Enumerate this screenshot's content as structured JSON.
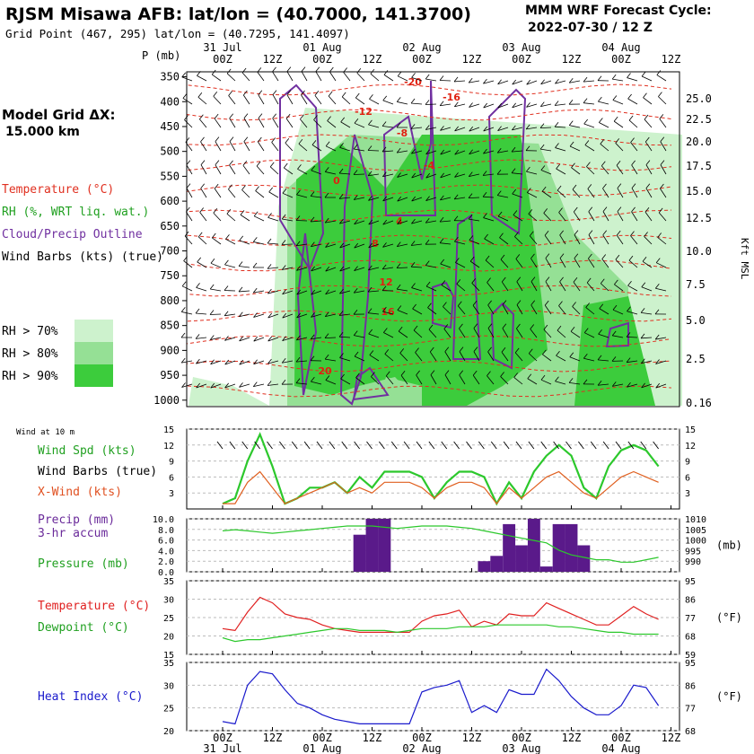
{
  "header": {
    "title": "RJSM Misawa AFB:  lat/lon = (40.7000, 141.3700)",
    "subtitle": "Grid Point (467, 295) lat/lon = (40.7295, 141.4097)",
    "cycle_label": "MMM WRF Forecast Cycle:",
    "cycle_value": "2022-07-30 / 12  Z"
  },
  "time_axis": {
    "day_labels": [
      "31 Jul",
      "01 Aug",
      "02 Aug",
      "03 Aug",
      "04 Aug"
    ],
    "hour_labels": [
      "00Z",
      "12Z",
      "00Z",
      "12Z",
      "00Z",
      "12Z",
      "00Z",
      "12Z",
      "00Z",
      "12Z"
    ]
  },
  "left_panel": {
    "model_grid_label": "Model Grid ΔX:",
    "model_grid_value": "15.000 km",
    "legend": [
      {
        "text": "Temperature (°C)",
        "color": "#e03020"
      },
      {
        "text": "RH (%, WRT liq. wat.)",
        "color": "#20a020"
      },
      {
        "text": "Cloud/Precip Outline",
        "color": "#7030a0"
      },
      {
        "text": "Wind Barbs (kts) (true)",
        "color": "#000000"
      }
    ],
    "rh_scale": [
      {
        "text": "RH > 70%",
        "color": "#cdf2cd"
      },
      {
        "text": "RH > 80%",
        "color": "#95e095"
      },
      {
        "text": "RH > 90%",
        "color": "#3ccc3c"
      }
    ]
  },
  "chart_data": [
    {
      "type": "heatmap",
      "name": "cross-section",
      "y_axis_title": "P (mb)",
      "pressure_levels": [
        350,
        400,
        450,
        500,
        550,
        600,
        650,
        700,
        750,
        800,
        850,
        900,
        950,
        1000
      ],
      "right_axis_title": "Kft MSL",
      "height_labels": [
        "25.0",
        "22.5",
        "20.0",
        "17.5",
        "15.0",
        "12.5",
        "10.0",
        "7.5",
        "5.0",
        "2.5",
        "0.16"
      ],
      "temperature_contour_labels": [
        "-20",
        "-16",
        "-12",
        "-8",
        "-4",
        "0",
        "4",
        "8",
        "12",
        "16",
        "20"
      ]
    },
    {
      "type": "line",
      "name": "wind",
      "panel_label": "Wind at 10 m",
      "left_ticks": [
        "15",
        "12",
        "9",
        "6",
        "3"
      ],
      "right_ticks": [
        "15",
        "12",
        "9",
        "6",
        "3"
      ],
      "labels": [
        "Wind Spd (kts)",
        "Wind Barbs (true)",
        "X-Wind (kts)"
      ],
      "ylim": [
        0,
        15
      ],
      "x": [
        0,
        3,
        6,
        9,
        12,
        15,
        18,
        21,
        24,
        27,
        30,
        33,
        36,
        39,
        42,
        45,
        48,
        51,
        54,
        57,
        60,
        63,
        66,
        69,
        72,
        75,
        78,
        81,
        84,
        87,
        90,
        93,
        96,
        99,
        102,
        105
      ],
      "series": [
        {
          "name": "Wind Spd (kts)",
          "color": "#2cc82c",
          "values": [
            1,
            2,
            9,
            14,
            8,
            1,
            2,
            4,
            4,
            5,
            3,
            6,
            4,
            7,
            7,
            7,
            6,
            2,
            5,
            7,
            7,
            6,
            1,
            5,
            2,
            7,
            10,
            12,
            10,
            4,
            2,
            8,
            11,
            12,
            11,
            8
          ]
        },
        {
          "name": "X-Wind (kts)",
          "color": "#e06020",
          "values": [
            1,
            1,
            5,
            7,
            4,
            1,
            2,
            3,
            4,
            5,
            3,
            4,
            3,
            5,
            5,
            5,
            4,
            2,
            4,
            5,
            5,
            4,
            1,
            4,
            2,
            4,
            6,
            7,
            5,
            3,
            2,
            4,
            6,
            7,
            6,
            5
          ]
        }
      ]
    },
    {
      "type": "bar",
      "name": "precip",
      "labels": [
        "Precip (mm)",
        "3-hr accum",
        "Pressure (mb)"
      ],
      "left_ticks": [
        "10.0",
        "8.0",
        "6.0",
        "4.0",
        "2.0",
        "0.0"
      ],
      "right_ticks": [
        "1010",
        "1005",
        "1000",
        "995",
        "990"
      ],
      "right_unit": "(mb)",
      "ylim": [
        0,
        10
      ],
      "pressure_ylim": [
        990,
        1012
      ],
      "x": [
        0,
        3,
        6,
        9,
        12,
        15,
        18,
        21,
        24,
        27,
        30,
        33,
        36,
        39,
        42,
        45,
        48,
        51,
        54,
        57,
        60,
        63,
        66,
        69,
        72,
        75,
        78,
        81,
        84,
        87,
        90,
        93,
        96,
        99,
        102,
        105
      ],
      "series": [
        {
          "name": "Precip (mm)",
          "color": "#5a1a8a",
          "values": [
            0,
            0,
            0,
            0,
            0,
            0,
            0,
            0,
            0,
            0,
            0,
            7,
            10,
            10,
            0,
            0,
            0,
            0,
            0,
            0,
            0,
            2,
            3,
            9,
            5,
            10,
            1,
            9,
            9,
            5,
            0,
            0,
            0,
            0,
            0,
            0
          ]
        },
        {
          "name": "Pressure (mb)",
          "color": "#2cc82c",
          "values": [
            1007,
            1007.5,
            1007,
            1006.5,
            1006,
            1006.5,
            1007,
            1007.5,
            1008,
            1008.5,
            1009,
            1009,
            1009,
            1008.5,
            1008,
            1008.5,
            1009,
            1009,
            1009,
            1008.5,
            1008,
            1007,
            1006,
            1005,
            1004,
            1003,
            1002,
            999,
            997,
            996,
            995,
            995,
            994,
            994,
            995,
            996
          ]
        }
      ]
    },
    {
      "type": "line",
      "name": "temperature",
      "labels": [
        "Temperature (°C)",
        "Dewpoint (°C)"
      ],
      "left_ticks": [
        "35",
        "30",
        "25",
        "20",
        "15"
      ],
      "right_ticks": [
        "95",
        "86",
        "77",
        "68",
        "59"
      ],
      "right_unit": "(°F)",
      "ylim": [
        15,
        35
      ],
      "x": [
        0,
        3,
        6,
        9,
        12,
        15,
        18,
        21,
        24,
        27,
        30,
        33,
        36,
        39,
        42,
        45,
        48,
        51,
        54,
        57,
        60,
        63,
        66,
        69,
        72,
        75,
        78,
        81,
        84,
        87,
        90,
        93,
        96,
        99,
        102,
        105
      ],
      "series": [
        {
          "name": "Temperature (°C)",
          "color": "#e02020",
          "values": [
            22,
            21.5,
            26.5,
            30.5,
            29,
            26,
            25,
            24.5,
            23,
            22,
            21.5,
            21,
            21,
            21,
            21,
            21,
            24,
            25.5,
            26,
            27,
            22.5,
            24,
            23,
            26,
            25.5,
            25.5,
            29,
            27.5,
            26,
            24.5,
            23,
            23,
            25.5,
            28,
            26,
            24.5
          ]
        },
        {
          "name": "Dewpoint (°C)",
          "color": "#2cc82c",
          "values": [
            19.5,
            18.5,
            19,
            19,
            19.5,
            20,
            20.5,
            21,
            21.5,
            22,
            22,
            21.5,
            21.5,
            21.5,
            21,
            21.5,
            22,
            22,
            22,
            22.5,
            22.5,
            22.5,
            23,
            23,
            23,
            23,
            23,
            22.5,
            22.5,
            22,
            21.5,
            21,
            21,
            20.5,
            20.5,
            20.5
          ]
        }
      ]
    },
    {
      "type": "line",
      "name": "heat-index",
      "labels": [
        "Heat Index (°C)"
      ],
      "left_ticks": [
        "35",
        "30",
        "25",
        "20"
      ],
      "right_ticks": [
        "95",
        "86",
        "77",
        "68"
      ],
      "right_unit": "(°F)",
      "ylim": [
        20,
        35
      ],
      "x": [
        0,
        3,
        6,
        9,
        12,
        15,
        18,
        21,
        24,
        27,
        30,
        33,
        36,
        39,
        42,
        45,
        48,
        51,
        54,
        57,
        60,
        63,
        66,
        69,
        72,
        75,
        78,
        81,
        84,
        87,
        90,
        93,
        96,
        99,
        102,
        105
      ],
      "series": [
        {
          "name": "Heat Index (°C)",
          "color": "#1a1acc",
          "values": [
            22,
            21.5,
            30,
            33,
            32.5,
            29,
            26,
            25,
            23.5,
            22.5,
            22,
            21.5,
            21.5,
            21.5,
            21.5,
            21.5,
            28.5,
            29.5,
            30,
            31,
            24,
            25.5,
            24,
            29,
            28,
            28,
            33.5,
            31,
            27.5,
            25,
            23.5,
            23.5,
            25.5,
            30,
            29.5,
            25.5
          ]
        }
      ]
    }
  ],
  "colors": {
    "temperature": "#e03020",
    "rh70": "#cdf2cd",
    "rh80": "#95e095",
    "rh90": "#3ccc3c",
    "cloud": "#7030a0",
    "precip": "#5a1a8a"
  }
}
